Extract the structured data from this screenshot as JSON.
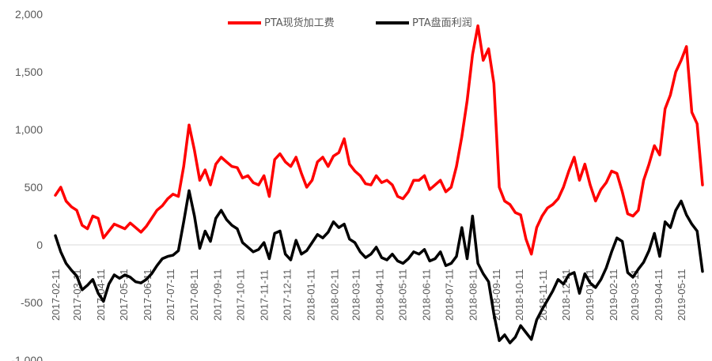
{
  "chart_data": {
    "type": "line",
    "title": "",
    "xlabel": "",
    "ylabel": "",
    "ylim": [
      -1000,
      2000
    ],
    "y_ticks": [
      2000,
      1500,
      1000,
      500,
      0,
      -500,
      -1000
    ],
    "y_tick_labels": [
      "2,000",
      "1,500",
      "1,000",
      "500",
      "0",
      "-500",
      "-1,000"
    ],
    "x_tick_labels": [
      "2017-02-11",
      "2017-03-11",
      "2017-04-11",
      "2017-05-11",
      "2017-06-11",
      "2017-07-11",
      "2017-08-11",
      "2017-09-11",
      "2017-10-11",
      "2017-11-11",
      "2017-12-11",
      "2018-01-11",
      "2018-02-11",
      "2018-03-11",
      "2018-04-11",
      "2018-05-11",
      "2018-06-11",
      "2018-07-11",
      "2018-08-11",
      "2018-09-11",
      "2018-10-11",
      "2018-11-11",
      "2018-12-11",
      "2019-01-11",
      "2019-02-11",
      "2019-03-11",
      "2019-04-11",
      "2019-05-11"
    ],
    "legend_position": "top-center",
    "grid": false,
    "series": [
      {
        "name": "PTA现货加工费",
        "color": "#ff0000",
        "points": [
          [
            "2017-02-11",
            430
          ],
          [
            "2017-02-18",
            500
          ],
          [
            "2017-02-25",
            380
          ],
          [
            "2017-03-04",
            330
          ],
          [
            "2017-03-11",
            300
          ],
          [
            "2017-03-18",
            170
          ],
          [
            "2017-03-25",
            140
          ],
          [
            "2017-04-01",
            250
          ],
          [
            "2017-04-08",
            230
          ],
          [
            "2017-04-15",
            60
          ],
          [
            "2017-04-22",
            120
          ],
          [
            "2017-04-29",
            180
          ],
          [
            "2017-05-06",
            160
          ],
          [
            "2017-05-13",
            140
          ],
          [
            "2017-05-20",
            190
          ],
          [
            "2017-05-27",
            150
          ],
          [
            "2017-06-03",
            110
          ],
          [
            "2017-06-10",
            160
          ],
          [
            "2017-06-17",
            230
          ],
          [
            "2017-06-24",
            300
          ],
          [
            "2017-07-01",
            340
          ],
          [
            "2017-07-08",
            400
          ],
          [
            "2017-07-15",
            440
          ],
          [
            "2017-07-22",
            420
          ],
          [
            "2017-07-29",
            680
          ],
          [
            "2017-08-05",
            1040
          ],
          [
            "2017-08-12",
            820
          ],
          [
            "2017-08-19",
            560
          ],
          [
            "2017-08-26",
            650
          ],
          [
            "2017-09-02",
            520
          ],
          [
            "2017-09-09",
            700
          ],
          [
            "2017-09-16",
            760
          ],
          [
            "2017-09-23",
            720
          ],
          [
            "2017-09-30",
            680
          ],
          [
            "2017-10-07",
            670
          ],
          [
            "2017-10-14",
            580
          ],
          [
            "2017-10-21",
            600
          ],
          [
            "2017-10-28",
            540
          ],
          [
            "2017-11-04",
            520
          ],
          [
            "2017-11-11",
            600
          ],
          [
            "2017-11-18",
            420
          ],
          [
            "2017-11-25",
            740
          ],
          [
            "2017-12-02",
            790
          ],
          [
            "2017-12-09",
            720
          ],
          [
            "2017-12-16",
            680
          ],
          [
            "2017-12-23",
            760
          ],
          [
            "2017-12-30",
            620
          ],
          [
            "2018-01-06",
            500
          ],
          [
            "2018-01-13",
            560
          ],
          [
            "2018-01-20",
            720
          ],
          [
            "2018-01-27",
            760
          ],
          [
            "2018-02-03",
            680
          ],
          [
            "2018-02-10",
            770
          ],
          [
            "2018-02-17",
            800
          ],
          [
            "2018-02-24",
            920
          ],
          [
            "2018-03-03",
            700
          ],
          [
            "2018-03-10",
            640
          ],
          [
            "2018-03-17",
            600
          ],
          [
            "2018-03-24",
            530
          ],
          [
            "2018-03-31",
            520
          ],
          [
            "2018-04-07",
            600
          ],
          [
            "2018-04-14",
            540
          ],
          [
            "2018-04-21",
            560
          ],
          [
            "2018-04-28",
            520
          ],
          [
            "2018-05-05",
            420
          ],
          [
            "2018-05-12",
            400
          ],
          [
            "2018-05-19",
            460
          ],
          [
            "2018-05-26",
            560
          ],
          [
            "2018-06-02",
            560
          ],
          [
            "2018-06-09",
            600
          ],
          [
            "2018-06-16",
            480
          ],
          [
            "2018-06-23",
            520
          ],
          [
            "2018-06-30",
            560
          ],
          [
            "2018-07-07",
            460
          ],
          [
            "2018-07-14",
            500
          ],
          [
            "2018-07-21",
            680
          ],
          [
            "2018-07-28",
            940
          ],
          [
            "2018-08-04",
            1250
          ],
          [
            "2018-08-11",
            1650
          ],
          [
            "2018-08-18",
            1900
          ],
          [
            "2018-08-25",
            1600
          ],
          [
            "2018-09-01",
            1700
          ],
          [
            "2018-09-08",
            1400
          ],
          [
            "2018-09-15",
            500
          ],
          [
            "2018-09-22",
            380
          ],
          [
            "2018-09-29",
            350
          ],
          [
            "2018-10-06",
            280
          ],
          [
            "2018-10-13",
            260
          ],
          [
            "2018-10-20",
            50
          ],
          [
            "2018-10-27",
            -80
          ],
          [
            "2018-11-03",
            150
          ],
          [
            "2018-11-10",
            250
          ],
          [
            "2018-11-17",
            320
          ],
          [
            "2018-11-24",
            350
          ],
          [
            "2018-12-01",
            400
          ],
          [
            "2018-12-08",
            500
          ],
          [
            "2018-12-15",
            640
          ],
          [
            "2018-12-22",
            760
          ],
          [
            "2018-12-29",
            560
          ],
          [
            "2019-01-05",
            700
          ],
          [
            "2019-01-12",
            520
          ],
          [
            "2019-01-19",
            380
          ],
          [
            "2019-01-26",
            480
          ],
          [
            "2019-02-02",
            540
          ],
          [
            "2019-02-09",
            640
          ],
          [
            "2019-02-16",
            620
          ],
          [
            "2019-02-23",
            460
          ],
          [
            "2019-03-02",
            270
          ],
          [
            "2019-03-09",
            250
          ],
          [
            "2019-03-16",
            300
          ],
          [
            "2019-03-23",
            560
          ],
          [
            "2019-03-30",
            700
          ],
          [
            "2019-04-06",
            860
          ],
          [
            "2019-04-13",
            780
          ],
          [
            "2019-04-20",
            1180
          ],
          [
            "2019-04-27",
            1300
          ],
          [
            "2019-05-04",
            1500
          ],
          [
            "2019-05-11",
            1600
          ],
          [
            "2019-05-18",
            1720
          ],
          [
            "2019-05-25",
            1150
          ],
          [
            "2019-06-01",
            1050
          ],
          [
            "2019-06-08",
            520
          ]
        ]
      },
      {
        "name": "PTA盘面利润",
        "color": "#000000",
        "points": [
          [
            "2017-02-11",
            80
          ],
          [
            "2017-02-18",
            -60
          ],
          [
            "2017-02-25",
            -160
          ],
          [
            "2017-03-04",
            -220
          ],
          [
            "2017-03-11",
            -270
          ],
          [
            "2017-03-18",
            -390
          ],
          [
            "2017-03-25",
            -350
          ],
          [
            "2017-04-01",
            -300
          ],
          [
            "2017-04-08",
            -420
          ],
          [
            "2017-04-15",
            -490
          ],
          [
            "2017-04-22",
            -340
          ],
          [
            "2017-04-29",
            -260
          ],
          [
            "2017-05-06",
            -290
          ],
          [
            "2017-05-13",
            -260
          ],
          [
            "2017-05-20",
            -280
          ],
          [
            "2017-05-27",
            -320
          ],
          [
            "2017-06-03",
            -330
          ],
          [
            "2017-06-10",
            -300
          ],
          [
            "2017-06-17",
            -250
          ],
          [
            "2017-06-24",
            -180
          ],
          [
            "2017-07-01",
            -120
          ],
          [
            "2017-07-08",
            -100
          ],
          [
            "2017-07-15",
            -90
          ],
          [
            "2017-07-22",
            -50
          ],
          [
            "2017-07-29",
            200
          ],
          [
            "2017-08-05",
            470
          ],
          [
            "2017-08-12",
            250
          ],
          [
            "2017-08-19",
            -30
          ],
          [
            "2017-08-26",
            120
          ],
          [
            "2017-09-02",
            30
          ],
          [
            "2017-09-09",
            230
          ],
          [
            "2017-09-16",
            300
          ],
          [
            "2017-09-23",
            220
          ],
          [
            "2017-09-30",
            170
          ],
          [
            "2017-10-07",
            140
          ],
          [
            "2017-10-14",
            20
          ],
          [
            "2017-10-21",
            -20
          ],
          [
            "2017-10-28",
            -60
          ],
          [
            "2017-11-04",
            -40
          ],
          [
            "2017-11-11",
            20
          ],
          [
            "2017-11-18",
            -120
          ],
          [
            "2017-11-25",
            100
          ],
          [
            "2017-12-02",
            120
          ],
          [
            "2017-12-09",
            -80
          ],
          [
            "2017-12-16",
            -130
          ],
          [
            "2017-12-23",
            40
          ],
          [
            "2017-12-30",
            -80
          ],
          [
            "2018-01-06",
            -50
          ],
          [
            "2018-01-13",
            20
          ],
          [
            "2018-01-20",
            90
          ],
          [
            "2018-01-27",
            60
          ],
          [
            "2018-02-03",
            110
          ],
          [
            "2018-02-10",
            200
          ],
          [
            "2018-02-17",
            150
          ],
          [
            "2018-02-24",
            180
          ],
          [
            "2018-03-03",
            50
          ],
          [
            "2018-03-10",
            20
          ],
          [
            "2018-03-17",
            -60
          ],
          [
            "2018-03-24",
            -110
          ],
          [
            "2018-03-31",
            -80
          ],
          [
            "2018-04-07",
            -20
          ],
          [
            "2018-04-14",
            -110
          ],
          [
            "2018-04-21",
            -130
          ],
          [
            "2018-04-28",
            -80
          ],
          [
            "2018-05-05",
            -140
          ],
          [
            "2018-05-12",
            -160
          ],
          [
            "2018-05-19",
            -120
          ],
          [
            "2018-05-26",
            -60
          ],
          [
            "2018-06-02",
            -80
          ],
          [
            "2018-06-09",
            -40
          ],
          [
            "2018-06-16",
            -140
          ],
          [
            "2018-06-23",
            -120
          ],
          [
            "2018-06-30",
            -60
          ],
          [
            "2018-07-07",
            -180
          ],
          [
            "2018-07-14",
            -160
          ],
          [
            "2018-07-21",
            -100
          ],
          [
            "2018-07-28",
            150
          ],
          [
            "2018-08-04",
            -120
          ],
          [
            "2018-08-11",
            250
          ],
          [
            "2018-08-18",
            -160
          ],
          [
            "2018-08-25",
            -250
          ],
          [
            "2018-09-01",
            -320
          ],
          [
            "2018-09-08",
            -600
          ],
          [
            "2018-09-15",
            -830
          ],
          [
            "2018-09-22",
            -780
          ],
          [
            "2018-09-29",
            -850
          ],
          [
            "2018-10-06",
            -800
          ],
          [
            "2018-10-13",
            -700
          ],
          [
            "2018-10-20",
            -760
          ],
          [
            "2018-10-27",
            -820
          ],
          [
            "2018-11-03",
            -650
          ],
          [
            "2018-11-10",
            -560
          ],
          [
            "2018-11-17",
            -480
          ],
          [
            "2018-11-24",
            -400
          ],
          [
            "2018-12-01",
            -300
          ],
          [
            "2018-12-08",
            -340
          ],
          [
            "2018-12-15",
            -260
          ],
          [
            "2018-12-22",
            -240
          ],
          [
            "2018-12-29",
            -420
          ],
          [
            "2019-01-05",
            -250
          ],
          [
            "2019-01-12",
            -330
          ],
          [
            "2019-01-19",
            -370
          ],
          [
            "2019-01-26",
            -300
          ],
          [
            "2019-02-02",
            -200
          ],
          [
            "2019-02-09",
            -60
          ],
          [
            "2019-02-16",
            60
          ],
          [
            "2019-02-23",
            30
          ],
          [
            "2019-03-02",
            -240
          ],
          [
            "2019-03-09",
            -280
          ],
          [
            "2019-03-16",
            -210
          ],
          [
            "2019-03-23",
            -150
          ],
          [
            "2019-03-30",
            -50
          ],
          [
            "2019-04-06",
            100
          ],
          [
            "2019-04-13",
            -100
          ],
          [
            "2019-04-20",
            200
          ],
          [
            "2019-04-27",
            150
          ],
          [
            "2019-05-04",
            300
          ],
          [
            "2019-05-11",
            380
          ],
          [
            "2019-05-18",
            260
          ],
          [
            "2019-05-25",
            180
          ],
          [
            "2019-06-01",
            120
          ],
          [
            "2019-06-08",
            -230
          ]
        ]
      }
    ]
  }
}
